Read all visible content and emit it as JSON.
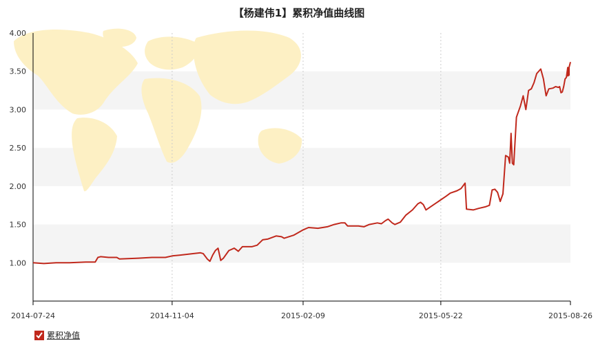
{
  "chart_data": {
    "type": "line",
    "title": "【杨建伟1】累积净值曲线图",
    "ylim": [
      0.5,
      4.0
    ],
    "y_ticks": [
      "1.00",
      "1.50",
      "2.00",
      "2.50",
      "3.00",
      "3.50",
      "4.00"
    ],
    "x_ticks": [
      "2014-07-24",
      "2014-11-04",
      "2015-02-09",
      "2015-05-22",
      "2015-08-26"
    ],
    "xlim": [
      "2014-07-24",
      "2015-08-26"
    ],
    "grid": true,
    "legend_position": "bottom-left",
    "series": [
      {
        "name": "累积净值",
        "color": "#c0281c",
        "points": [
          [
            "2014-07-24",
            1.0
          ],
          [
            "2014-08-01",
            0.99
          ],
          [
            "2014-08-10",
            1.0
          ],
          [
            "2014-08-20",
            1.0
          ],
          [
            "2014-09-01",
            1.01
          ],
          [
            "2014-09-08",
            1.01
          ],
          [
            "2014-09-10",
            1.07
          ],
          [
            "2014-09-12",
            1.08
          ],
          [
            "2014-09-18",
            1.07
          ],
          [
            "2014-09-24",
            1.07
          ],
          [
            "2014-09-26",
            1.05
          ],
          [
            "2014-10-10",
            1.06
          ],
          [
            "2014-10-20",
            1.07
          ],
          [
            "2014-10-30",
            1.07
          ],
          [
            "2014-11-04",
            1.09
          ],
          [
            "2014-11-10",
            1.1
          ],
          [
            "2014-11-20",
            1.12
          ],
          [
            "2014-11-25",
            1.13
          ],
          [
            "2014-11-27",
            1.12
          ],
          [
            "2014-11-30",
            1.05
          ],
          [
            "2014-12-02",
            1.02
          ],
          [
            "2014-12-04",
            1.1
          ],
          [
            "2014-12-06",
            1.16
          ],
          [
            "2014-12-08",
            1.19
          ],
          [
            "2014-12-10",
            1.03
          ],
          [
            "2014-12-12",
            1.06
          ],
          [
            "2014-12-16",
            1.16
          ],
          [
            "2014-12-20",
            1.19
          ],
          [
            "2014-12-23",
            1.15
          ],
          [
            "2014-12-26",
            1.21
          ],
          [
            "2015-01-02",
            1.21
          ],
          [
            "2015-01-06",
            1.23
          ],
          [
            "2015-01-10",
            1.3
          ],
          [
            "2015-01-14",
            1.31
          ],
          [
            "2015-01-20",
            1.35
          ],
          [
            "2015-01-24",
            1.34
          ],
          [
            "2015-01-26",
            1.32
          ],
          [
            "2015-02-02",
            1.36
          ],
          [
            "2015-02-06",
            1.4
          ],
          [
            "2015-02-09",
            1.43
          ],
          [
            "2015-02-13",
            1.46
          ],
          [
            "2015-02-20",
            1.45
          ],
          [
            "2015-02-27",
            1.47
          ],
          [
            "2015-03-04",
            1.5
          ],
          [
            "2015-03-09",
            1.52
          ],
          [
            "2015-03-12",
            1.52
          ],
          [
            "2015-03-14",
            1.48
          ],
          [
            "2015-03-22",
            1.48
          ],
          [
            "2015-03-26",
            1.47
          ],
          [
            "2015-03-30",
            1.5
          ],
          [
            "2015-04-05",
            1.52
          ],
          [
            "2015-04-08",
            1.51
          ],
          [
            "2015-04-11",
            1.55
          ],
          [
            "2015-04-13",
            1.57
          ],
          [
            "2015-04-16",
            1.52
          ],
          [
            "2015-04-18",
            1.5
          ],
          [
            "2015-04-22",
            1.53
          ],
          [
            "2015-04-26",
            1.62
          ],
          [
            "2015-05-01",
            1.69
          ],
          [
            "2015-05-05",
            1.77
          ],
          [
            "2015-05-07",
            1.79
          ],
          [
            "2015-05-09",
            1.76
          ],
          [
            "2015-05-11",
            1.69
          ],
          [
            "2015-05-16",
            1.75
          ],
          [
            "2015-05-21",
            1.81
          ],
          [
            "2015-05-26",
            1.87
          ],
          [
            "2015-05-29",
            1.91
          ],
          [
            "2015-06-03",
            1.94
          ],
          [
            "2015-06-06",
            1.97
          ],
          [
            "2015-06-09",
            2.04
          ],
          [
            "2015-06-10",
            1.7
          ],
          [
            "2015-06-15",
            1.69
          ],
          [
            "2015-06-19",
            1.71
          ],
          [
            "2015-06-24",
            1.73
          ],
          [
            "2015-06-27",
            1.75
          ],
          [
            "2015-06-29",
            1.95
          ],
          [
            "2015-07-01",
            1.96
          ],
          [
            "2015-07-03",
            1.92
          ],
          [
            "2015-07-05",
            1.8
          ],
          [
            "2015-07-07",
            1.9
          ],
          [
            "2015-07-09",
            2.4
          ],
          [
            "2015-07-11",
            2.38
          ],
          [
            "2015-07-12",
            2.3
          ],
          [
            "2015-07-13",
            2.69
          ],
          [
            "2015-07-14",
            2.3
          ],
          [
            "2015-07-15",
            2.28
          ],
          [
            "2015-07-17",
            2.9
          ],
          [
            "2015-07-20",
            3.05
          ],
          [
            "2015-07-22",
            3.18
          ],
          [
            "2015-07-24",
            3.0
          ],
          [
            "2015-07-26",
            3.25
          ],
          [
            "2015-07-28",
            3.27
          ],
          [
            "2015-07-30",
            3.35
          ],
          [
            "2015-08-01",
            3.47
          ],
          [
            "2015-08-04",
            3.53
          ],
          [
            "2015-08-06",
            3.4
          ],
          [
            "2015-08-08",
            3.18
          ],
          [
            "2015-08-10",
            3.27
          ],
          [
            "2015-08-13",
            3.28
          ],
          [
            "2015-08-15",
            3.3
          ],
          [
            "2015-08-17",
            3.29
          ],
          [
            "2015-08-18",
            3.3
          ],
          [
            "2015-08-19",
            3.22
          ],
          [
            "2015-08-20",
            3.23
          ],
          [
            "2015-08-21",
            3.3
          ],
          [
            "2015-08-22",
            3.4
          ],
          [
            "2015-08-23",
            3.42
          ],
          [
            "2015-08-24",
            3.55
          ],
          [
            "2015-08-24",
            3.44
          ],
          [
            "2015-08-25",
            3.45
          ],
          [
            "2015-08-25",
            3.55
          ],
          [
            "2015-08-26",
            3.62
          ]
        ]
      }
    ]
  },
  "colors": {
    "line": "#c0281c",
    "band": "#f4f4f4",
    "map": "#fdf0c4"
  },
  "legend": {
    "label": "累积净值",
    "checked": true
  }
}
